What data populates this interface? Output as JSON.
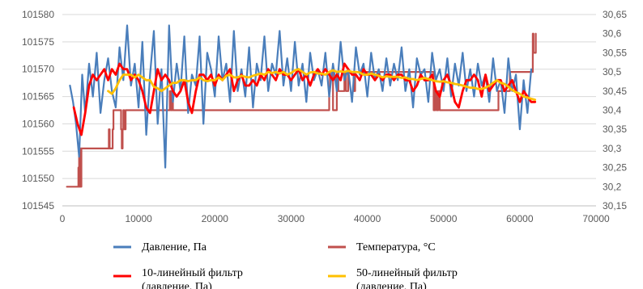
{
  "chart_data": {
    "type": "line",
    "title": "",
    "xlabel": "",
    "ylabel": "",
    "y2label": "",
    "xlim": [
      0,
      70000
    ],
    "ylim": [
      101545,
      101580
    ],
    "y2lim": [
      30.15,
      30.65
    ],
    "grid": true,
    "legend_position": "bottom",
    "x_ticks": [
      "0",
      "10000",
      "20000",
      "30000",
      "40000",
      "50000",
      "60000",
      "70000"
    ],
    "y_ticks": [
      "101545",
      "101550",
      "101555",
      "101560",
      "101565",
      "101570",
      "101575",
      "101580"
    ],
    "y2_ticks": [
      "30,15",
      "30,2",
      "30,25",
      "30,3",
      "30,35",
      "30,4",
      "30,45",
      "30,5",
      "30,55",
      "30,6",
      "30,65"
    ],
    "legend": [
      {
        "key": "pressure",
        "lines": [
          "Давление, Па"
        ]
      },
      {
        "key": "temperature",
        "lines": [
          "Температура, °С"
        ]
      },
      {
        "key": "filter10",
        "lines": [
          "10-линейный фильтр",
          "(давление, Па)"
        ]
      },
      {
        "key": "filter50",
        "lines": [
          "50-линейный фильтр",
          "(давление, Па)"
        ]
      }
    ],
    "series": [
      {
        "key": "pressure",
        "name": "Давление, Па",
        "axis": "left",
        "color": "#4a7ebb",
        "width": 2.2,
        "x": [
          1000,
          1400,
          1800,
          2200,
          2600,
          3000,
          3500,
          4000,
          4500,
          5000,
          5500,
          6000,
          6500,
          7000,
          7500,
          8000,
          8500,
          9000,
          9500,
          10000,
          10500,
          11000,
          11500,
          12000,
          12500,
          13000,
          13500,
          14000,
          14500,
          15000,
          15500,
          16000,
          16500,
          17000,
          17500,
          18000,
          18500,
          19000,
          19500,
          20000,
          20500,
          21000,
          21500,
          22000,
          22500,
          23000,
          23500,
          24000,
          24500,
          25000,
          25500,
          26000,
          26500,
          27000,
          27500,
          28000,
          28500,
          29000,
          29500,
          30000,
          30500,
          31000,
          31500,
          32000,
          32500,
          33000,
          33500,
          34000,
          34500,
          35000,
          35500,
          36000,
          36500,
          37000,
          37500,
          38000,
          38500,
          39000,
          39500,
          40000,
          40500,
          41000,
          41500,
          42000,
          42500,
          43000,
          43500,
          44000,
          44500,
          45000,
          45500,
          46000,
          46500,
          47000,
          47500,
          48000,
          48500,
          49000,
          49500,
          50000,
          50500,
          51000,
          51500,
          52000,
          52500,
          53000,
          53500,
          54000,
          54500,
          55000,
          55500,
          56000,
          56500,
          57000,
          57500,
          58000,
          58500,
          59000,
          59500,
          60000,
          60500,
          61000,
          61500
        ],
        "values": [
          101567,
          101564,
          101560,
          101554,
          101569,
          101562,
          101571,
          101565,
          101573,
          101562,
          101568,
          101572,
          101566,
          101563,
          101574,
          101568,
          101578,
          101567,
          101571,
          101563,
          101575,
          101558,
          101569,
          101577,
          101560,
          101570,
          101552,
          101578,
          101564,
          101571,
          101566,
          101576,
          101562,
          101569,
          101567,
          101576,
          101560,
          101573,
          101570,
          101565,
          101576,
          101568,
          101571,
          101564,
          101577,
          101566,
          101570,
          101565,
          101574,
          101563,
          101571,
          101568,
          101576,
          101566,
          101571,
          101569,
          101577,
          101567,
          101572,
          101566,
          101575,
          101567,
          101571,
          101564,
          101573,
          101568,
          101570,
          101567,
          101573,
          101565,
          101571,
          101566,
          101575,
          101568,
          101570,
          101564,
          101574,
          101569,
          101571,
          101565,
          101573,
          101568,
          101570,
          101566,
          101572,
          101567,
          101571,
          101568,
          101574,
          101566,
          101570,
          101563,
          101572,
          101569,
          101570,
          101564,
          101573,
          101568,
          101570,
          101566,
          101572,
          101565,
          101571,
          101567,
          101573,
          101566,
          101570,
          101565,
          101571,
          101567,
          101569,
          101564,
          101572,
          101566,
          101568,
          101562,
          101572,
          101566,
          101569,
          101559,
          101568,
          101562,
          101570
        ]
      },
      {
        "key": "temperature",
        "name": "Температура, °С",
        "axis": "right",
        "color": "#c0504d",
        "width": 2.2,
        "x": [
          600,
          2000,
          2100,
          2150,
          2200,
          2250,
          2300,
          2350,
          2400,
          2500,
          2550,
          2600,
          6000,
          6100,
          6200,
          6600,
          6700,
          7600,
          7700,
          7800,
          7900,
          8000,
          8100,
          8300,
          8400,
          14000,
          14100,
          14200,
          14400,
          14500,
          14600,
          15000,
          15100,
          34800,
          35000,
          35100,
          35500,
          36000,
          36200,
          37000,
          37200,
          37500,
          38200,
          38400,
          38600,
          40000,
          48500,
          48700,
          48900,
          49100,
          49300,
          49500,
          57000,
          57200,
          58500,
          58700,
          59000,
          61500,
          61700,
          61800,
          62100
        ],
        "values": [
          30.2,
          30.2,
          30.25,
          30.2,
          30.3,
          30.2,
          30.25,
          30.3,
          30.2,
          30.3,
          30.3,
          30.3,
          30.3,
          30.35,
          30.3,
          30.35,
          30.4,
          30.4,
          30.35,
          30.3,
          30.35,
          30.4,
          30.35,
          30.4,
          30.4,
          30.4,
          30.45,
          30.4,
          30.45,
          30.4,
          30.4,
          30.4,
          30.4,
          30.4,
          30.45,
          30.5,
          30.4,
          30.5,
          30.45,
          30.5,
          30.45,
          30.5,
          30.45,
          30.5,
          30.5,
          30.5,
          30.5,
          30.4,
          30.45,
          30.4,
          30.45,
          30.4,
          30.4,
          30.45,
          30.45,
          30.5,
          30.5,
          30.5,
          30.6,
          30.55,
          30.6
        ]
      },
      {
        "key": "filter10",
        "name": "10-линейный фильтр (давление, Па)",
        "axis": "left",
        "color": "#ff0000",
        "width": 2.8,
        "x": [
          1500,
          2000,
          2500,
          3000,
          3500,
          4000,
          4500,
          5000,
          5500,
          6000,
          6500,
          7000,
          7500,
          8000,
          8500,
          9000,
          9500,
          10000,
          10500,
          11000,
          11500,
          12000,
          12500,
          13000,
          13500,
          14000,
          14500,
          15000,
          15500,
          16000,
          16500,
          17000,
          17500,
          18000,
          18500,
          19000,
          19500,
          20000,
          20500,
          21000,
          21500,
          22000,
          22500,
          23000,
          23500,
          24000,
          24500,
          25000,
          25500,
          26000,
          26500,
          27000,
          27500,
          28000,
          28500,
          29000,
          29500,
          30000,
          30500,
          31000,
          31500,
          32000,
          32500,
          33000,
          33500,
          34000,
          34500,
          35000,
          35500,
          36000,
          36500,
          37000,
          37500,
          38000,
          38500,
          39000,
          39500,
          40000,
          40500,
          41000,
          41500,
          42000,
          42500,
          43000,
          43500,
          44000,
          44500,
          45000,
          45500,
          46000,
          46500,
          47000,
          47500,
          48000,
          48500,
          49000,
          49500,
          50000,
          50500,
          51000,
          51500,
          52000,
          52500,
          53000,
          53500,
          54000,
          54500,
          55000,
          55500,
          56000,
          56500,
          57000,
          57500,
          58000,
          58500,
          59000,
          59500,
          60000,
          60500,
          61000,
          61500,
          62000
        ],
        "values": [
          101563,
          101560,
          101558,
          101562,
          101567,
          101569,
          101568,
          101569,
          101570,
          101568,
          101570,
          101569,
          101571,
          101570,
          101570,
          101568,
          101569,
          101568,
          101566,
          101563,
          101562,
          101566,
          101570,
          101568,
          101569,
          101568,
          101566,
          101565,
          101566,
          101568,
          101564,
          101562,
          101566,
          101569,
          101569,
          101568,
          101569,
          101567,
          101569,
          101568,
          101569,
          101570,
          101566,
          101568,
          101569,
          101567,
          101567,
          101568,
          101567,
          101569,
          101568,
          101570,
          101569,
          101568,
          101570,
          101569,
          101569,
          101568,
          101569,
          101570,
          101568,
          101569,
          101567,
          101569,
          101570,
          101569,
          101570,
          101569,
          101568,
          101569,
          101568,
          101571,
          101570,
          101569,
          101569,
          101568,
          101570,
          101569,
          101569,
          101568,
          101569,
          101568,
          101569,
          101569,
          101568,
          101569,
          101569,
          101568,
          101568,
          101566,
          101567,
          101569,
          101568,
          101568,
          101569,
          101566,
          101565,
          101568,
          101569,
          101567,
          101564,
          101563,
          101566,
          101568,
          101568,
          101569,
          101568,
          101565,
          101569,
          101566,
          101567,
          101568,
          101568,
          101566,
          101567,
          101568,
          101566,
          101564,
          101566,
          101565,
          101564,
          101564
        ]
      },
      {
        "key": "filter50",
        "name": "50-линейный фильтр (давление, Па)",
        "axis": "left",
        "color": "#ffc000",
        "width": 2.8,
        "x": [
          6000,
          6500,
          7000,
          7500,
          8000,
          8500,
          9000,
          9500,
          10000,
          10500,
          11000,
          11500,
          12000,
          12500,
          13000,
          13500,
          14000,
          14500,
          15000,
          15500,
          16000,
          16500,
          17000,
          17500,
          18000,
          18500,
          19000,
          19500,
          20000,
          20500,
          21000,
          21500,
          22000,
          22500,
          23000,
          23500,
          24000,
          24500,
          25000,
          25500,
          26000,
          26500,
          27000,
          27500,
          28000,
          28500,
          29000,
          29500,
          30000,
          30500,
          31000,
          31500,
          32000,
          32500,
          33000,
          33500,
          34000,
          34500,
          35000,
          35500,
          36000,
          36500,
          37000,
          37500,
          38000,
          38500,
          39000,
          39500,
          40000,
          40500,
          41000,
          41500,
          42000,
          42500,
          43000,
          43500,
          44000,
          44500,
          45000,
          45500,
          46000,
          46500,
          47000,
          47500,
          48000,
          48500,
          49000,
          49500,
          50000,
          50500,
          51000,
          51500,
          52000,
          52500,
          53000,
          53500,
          54000,
          54500,
          55000,
          55500,
          56000,
          56500,
          57000,
          57500,
          58000,
          58500,
          59000,
          59500,
          60000,
          60500,
          61000,
          61500,
          62000
        ],
        "values": [
          101566,
          101565.5,
          101566.5,
          101568,
          101569,
          101569,
          101569,
          101568.5,
          101569,
          101568.5,
          101568,
          101568,
          101566.8,
          101566.5,
          101566,
          101566.5,
          101567,
          101567.5,
          101567.5,
          101568,
          101568,
          101567.8,
          101568,
          101568,
          101568.5,
          101568,
          101567.8,
          101568,
          101568,
          101568.5,
          101568,
          101568.8,
          101569,
          101568.5,
          101568.5,
          101568.8,
          101568.6,
          101568.5,
          101568.8,
          101569,
          101569.2,
          101569,
          101569.5,
          101569.3,
          101569.5,
          101569.2,
          101569.5,
          101569,
          101569.3,
          101569.8,
          101570,
          101569.5,
          101569,
          101569.4,
          101569.5,
          101569.2,
          101569.2,
          101569,
          101569.5,
          101569.8,
          101569.5,
          101569.6,
          101569.5,
          101569.7,
          101569.5,
          101569.5,
          101569.4,
          101569,
          101569,
          101569.2,
          101569,
          101568.8,
          101568.5,
          101568.7,
          101568.6,
          101568.6,
          101568.6,
          101568.4,
          101568.5,
          101568.2,
          101568.2,
          101568,
          101568.2,
          101568.4,
          101568.2,
          101568,
          101567.8,
          101567.7,
          101567.8,
          101567.6,
          101567.5,
          101567.3,
          101567.2,
          101567,
          101566.8,
          101566.6,
          101566.6,
          101566.4,
          101566.4,
          101566.6,
          101567,
          101567.5,
          101568,
          101567.5,
          101567.3,
          101566.8,
          101566.2,
          101565.8,
          101565.5,
          101565,
          101564.8,
          101564.6,
          101564.4
        ]
      }
    ]
  }
}
